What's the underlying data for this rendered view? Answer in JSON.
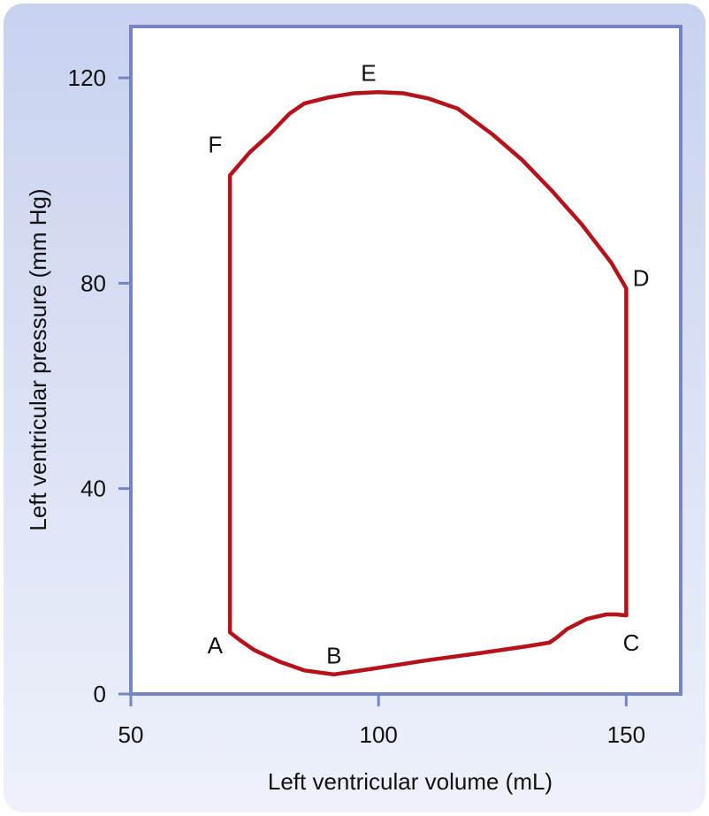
{
  "chart_data": {
    "type": "line",
    "title": "",
    "xlabel": "Left ventricular volume (mL)",
    "ylabel": "Left ventricular pressure (mm Hg)",
    "xlim": [
      50,
      161
    ],
    "ylim": [
      0,
      130
    ],
    "xticks": [
      50,
      100,
      150
    ],
    "yticks": [
      0,
      40,
      80,
      120
    ],
    "grid": false,
    "series": [
      {
        "color": "#b5121b",
        "x": [
          70,
          70,
          72,
          75,
          80,
          85,
          91,
          100,
          110,
          120,
          130,
          134.5,
          136,
          138,
          142,
          146,
          148,
          150,
          150,
          147,
          141,
          135,
          129,
          123,
          116,
          110,
          105,
          100,
          95,
          90,
          85,
          82,
          78,
          74,
          70
        ],
        "y": [
          12,
          12,
          10.5,
          8.5,
          6.3,
          4.6,
          3.8,
          5.1,
          6.6,
          7.9,
          9.3,
          10,
          11,
          12.6,
          14.6,
          15.5,
          15.5,
          15.3,
          79,
          84,
          91.5,
          98,
          104,
          109,
          114,
          116,
          117,
          117.2,
          117,
          116.2,
          115,
          113,
          109,
          105.5,
          101
        ]
      }
    ],
    "annotations": [
      {
        "label": "A",
        "x": 67,
        "y": 9.5
      },
      {
        "label": "B",
        "x": 91,
        "y": 7.5
      },
      {
        "label": "C",
        "x": 151,
        "y": 10
      },
      {
        "label": "D",
        "x": 153,
        "y": 81
      },
      {
        "label": "E",
        "x": 98,
        "y": 121
      },
      {
        "label": "F",
        "x": 67,
        "y": 107
      }
    ]
  }
}
